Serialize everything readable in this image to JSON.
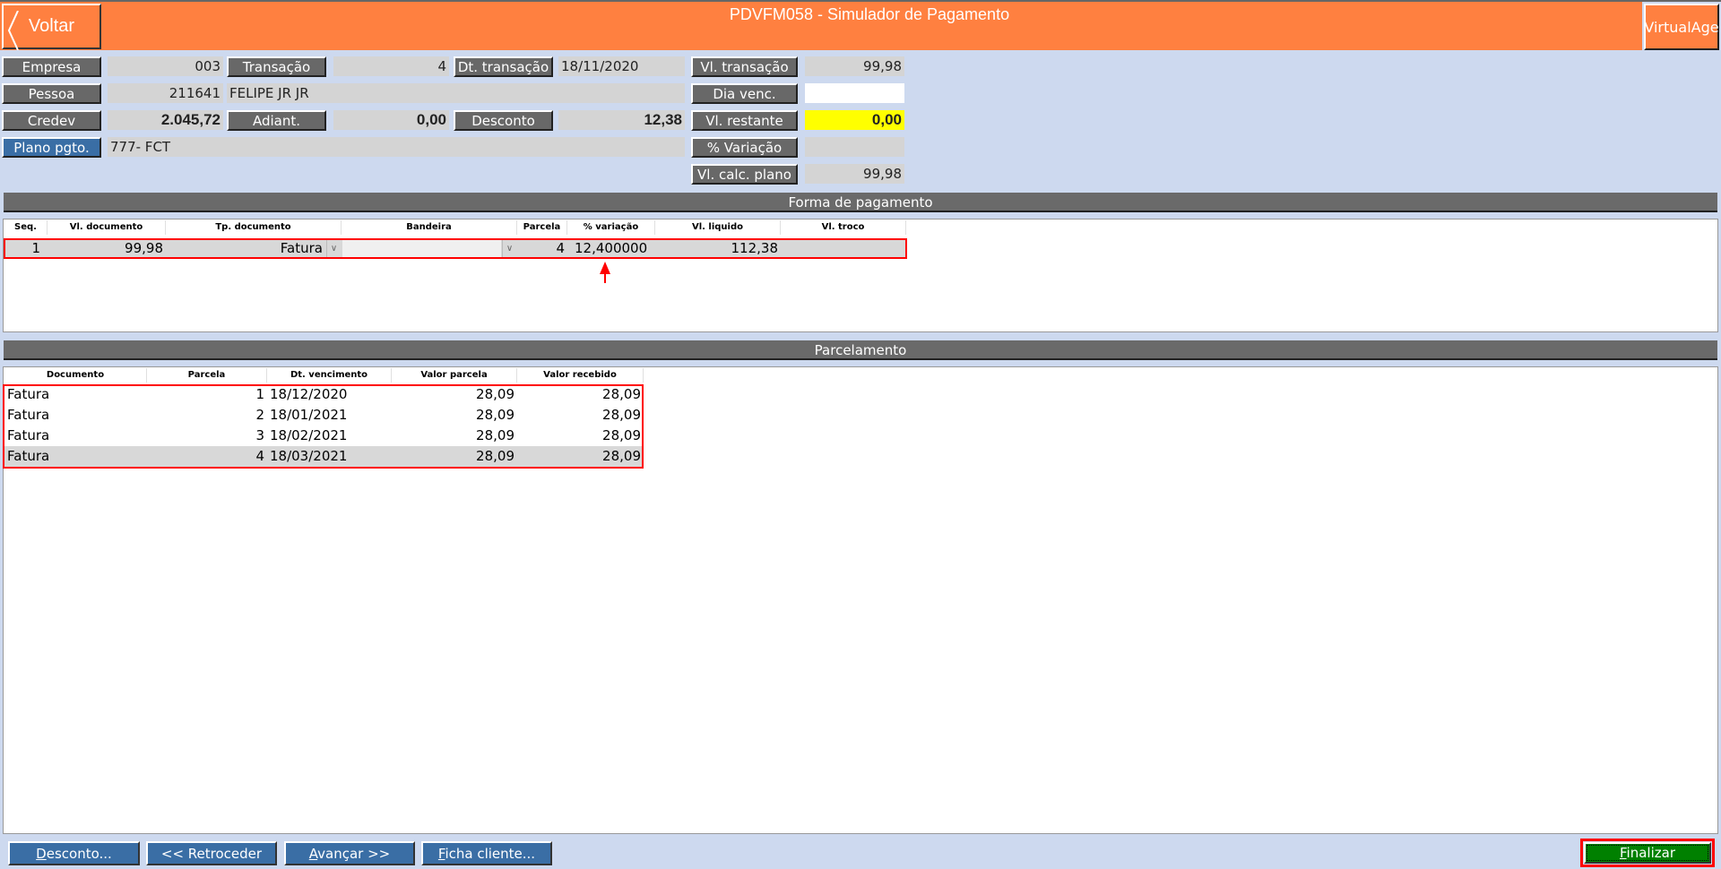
{
  "header": {
    "title": "PDVFM058 - Simulador de Pagamento",
    "back_label": "Voltar",
    "brand": "VirtualAge",
    "accent": "#ff8040"
  },
  "form": {
    "empresa": {
      "label": "Empresa",
      "value": "003"
    },
    "transacao": {
      "label": "Transação",
      "value": "4"
    },
    "dt_transacao": {
      "label": "Dt. transação",
      "value": "18/11/2020"
    },
    "vl_transacao": {
      "label": "Vl. transação",
      "value": "99,98"
    },
    "pessoa": {
      "label": "Pessoa",
      "code": "211641",
      "name": "FELIPE JR JR"
    },
    "dia_venc": {
      "label": "Dia venc.",
      "value": ""
    },
    "credev": {
      "label": "Credev",
      "value": "2.045,72"
    },
    "adiant": {
      "label": "Adiant.",
      "value": "0,00"
    },
    "desconto": {
      "label": "Desconto",
      "value": "12,38"
    },
    "vl_restante": {
      "label": "Vl. restante",
      "value": "0,00"
    },
    "plano": {
      "label": "Plano pgto.",
      "value": "777- FCT"
    },
    "variacao": {
      "label": "% Variação",
      "value": ""
    },
    "vl_calc_plano": {
      "label": "Vl. calc. plano",
      "value": "99,98"
    }
  },
  "forma": {
    "title": "Forma de pagamento",
    "columns": [
      "Seq.",
      "Vl. documento",
      "Tp. documento",
      "Bandeira",
      "Parcela",
      "% variação",
      "Vl. liquido",
      "Vl. troco"
    ],
    "rows": [
      {
        "seq": "1",
        "vl_documento": "99,98",
        "tp_documento": "Fatura",
        "bandeira": "",
        "parcela": "4",
        "variacao": "12,400000",
        "vl_liquido": "112,38",
        "vl_troco": ""
      }
    ]
  },
  "parcelamento": {
    "title": "Parcelamento",
    "columns": [
      "Documento",
      "Parcela",
      "Dt. vencimento",
      "Valor parcela",
      "Valor recebido"
    ],
    "rows": [
      [
        "Fatura",
        "1",
        "18/12/2020",
        "28,09",
        "28,09"
      ],
      [
        "Fatura",
        "2",
        "18/01/2021",
        "28,09",
        "28,09"
      ],
      [
        "Fatura",
        "3",
        "18/02/2021",
        "28,09",
        "28,09"
      ],
      [
        "Fatura",
        "4",
        "18/03/2021",
        "28,09",
        "28,09"
      ]
    ]
  },
  "footer": {
    "desconto": "Desconto...",
    "retroceder": "<< Retroceder",
    "avancar": "Avançar >>",
    "ficha": "Ficha cliente...",
    "finalizar": "Finalizar"
  }
}
